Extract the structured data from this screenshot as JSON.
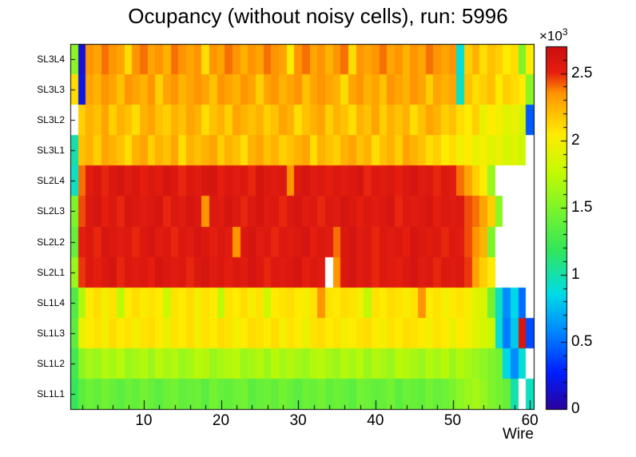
{
  "chart_data": {
    "type": "heatmap",
    "title": "Ocupancy (without noisy cells), run: 5996",
    "xlabel": "Wire",
    "x_bins": {
      "min": 1,
      "max": 60
    },
    "x_ticks": [
      10,
      20,
      30,
      40,
      50,
      60
    ],
    "rows_top_to_bottom": [
      "SL3L4",
      "SL3L3",
      "SL3L2",
      "SL3L1",
      "SL2L4",
      "SL2L3",
      "SL2L2",
      "SL2L1",
      "SL1L4",
      "SL1L3",
      "SL1L2",
      "SL1L1"
    ],
    "z_scale_factor": 1000,
    "z_unit_label": {
      "base": "×10",
      "exp": "3"
    },
    "zlim": [
      0,
      2.7
    ],
    "colorbar_ticks": [
      0,
      0.5,
      1,
      1.5,
      2,
      2.5
    ],
    "legend_position": "right",
    "grid": false,
    "palette": [
      [
        0.0,
        "#2d009b"
      ],
      [
        0.1,
        "#001eff"
      ],
      [
        0.22,
        "#008cff"
      ],
      [
        0.32,
        "#00dce6"
      ],
      [
        0.44,
        "#32e65a"
      ],
      [
        0.56,
        "#82f528"
      ],
      [
        0.66,
        "#c8fa00"
      ],
      [
        0.76,
        "#ffeb00"
      ],
      [
        0.87,
        "#ff9600"
      ],
      [
        0.93,
        "#e61e0f"
      ],
      [
        1.0,
        "#c80f0f"
      ]
    ],
    "values": [
      [
        1.55,
        0.15,
        2.35,
        2.3,
        2.4,
        2.35,
        2.3,
        2.1,
        2.35,
        2.4,
        2.3,
        2.35,
        2.25,
        2.4,
        2.35,
        2.3,
        2.35,
        2.1,
        2.35,
        2.3,
        2.4,
        2.35,
        2.25,
        2.35,
        2.3,
        2.4,
        2.35,
        2.3,
        2.05,
        2.35,
        2.4,
        2.3,
        2.35,
        2.25,
        2.35,
        2.4,
        2.1,
        2.35,
        2.3,
        2.35,
        2.4,
        2.3,
        2.35,
        2.25,
        2.35,
        2.3,
        2.4,
        2.35,
        2.3,
        2.35,
        0.9,
        2.15,
        2.25,
        2.1,
        2.2,
        2.15,
        2.05,
        2.1,
        1.5,
        2.05
      ],
      [
        2.1,
        0.2,
        2.3,
        2.25,
        2.35,
        2.3,
        2.2,
        2.35,
        2.3,
        2.25,
        2.35,
        2.15,
        2.3,
        2.35,
        2.25,
        2.3,
        2.35,
        2.3,
        2.2,
        2.35,
        2.3,
        2.25,
        2.35,
        2.3,
        2.15,
        2.3,
        2.35,
        2.25,
        2.3,
        2.35,
        2.2,
        2.3,
        2.35,
        2.3,
        2.25,
        2.1,
        2.3,
        2.35,
        2.25,
        2.3,
        2.2,
        2.35,
        2.3,
        2.25,
        2.35,
        2.3,
        2.15,
        2.3,
        2.25,
        2.3,
        0.95,
        2.2,
        2.1,
        2.15,
        2.2,
        2.05,
        2.15,
        2.1,
        2.05,
        1.55
      ],
      [
        null,
        2.15,
        2.25,
        2.2,
        2.3,
        2.15,
        2.25,
        2.2,
        2.1,
        2.25,
        2.3,
        2.2,
        2.15,
        2.25,
        2.2,
        2.3,
        2.25,
        2.1,
        2.2,
        2.25,
        2.15,
        2.3,
        2.25,
        2.2,
        2.25,
        2.15,
        2.2,
        2.3,
        2.25,
        2.1,
        2.2,
        2.25,
        2.3,
        2.15,
        2.25,
        2.2,
        2.1,
        2.25,
        2.2,
        2.3,
        2.15,
        2.25,
        2.2,
        2.25,
        2.1,
        2.2,
        2.3,
        2.25,
        2.15,
        2.2,
        2.1,
        2.05,
        2.15,
        1.95,
        2.05,
        2.0,
        1.9,
        1.95,
        1.85,
        0.45
      ],
      [
        1.0,
        2.2,
        2.25,
        2.15,
        2.3,
        2.25,
        2.2,
        2.1,
        2.25,
        2.3,
        2.15,
        2.25,
        2.2,
        2.3,
        2.1,
        2.25,
        2.2,
        2.25,
        2.3,
        2.15,
        2.25,
        2.2,
        2.1,
        2.25,
        2.3,
        2.2,
        2.25,
        2.15,
        2.2,
        2.25,
        2.3,
        2.1,
        2.25,
        2.2,
        2.15,
        2.25,
        2.3,
        2.2,
        2.25,
        2.1,
        2.2,
        2.25,
        2.15,
        2.3,
        2.25,
        2.2,
        2.1,
        2.15,
        2.05,
        2.1,
        2.0,
        2.05,
        1.95,
        2.0,
        1.9,
        1.95,
        1.85,
        1.9,
        1.8,
        null
      ],
      [
        0.95,
        2.4,
        2.55,
        2.6,
        2.5,
        2.58,
        2.62,
        2.55,
        2.6,
        2.52,
        2.58,
        2.55,
        2.62,
        2.58,
        2.5,
        2.58,
        2.55,
        2.6,
        2.62,
        2.52,
        2.58,
        2.55,
        2.58,
        2.5,
        2.62,
        2.58,
        2.55,
        2.58,
        2.35,
        2.58,
        2.62,
        2.55,
        2.58,
        2.52,
        2.58,
        2.55,
        2.58,
        2.62,
        2.5,
        2.58,
        2.55,
        2.58,
        2.52,
        2.58,
        2.62,
        2.55,
        2.58,
        2.5,
        2.58,
        2.55,
        2.4,
        2.3,
        2.15,
        2.05,
        1.6,
        null,
        null,
        null,
        null,
        null
      ],
      [
        1.5,
        2.45,
        2.58,
        2.62,
        2.52,
        2.58,
        2.5,
        2.62,
        2.58,
        2.55,
        2.58,
        2.62,
        2.5,
        2.58,
        2.55,
        2.62,
        2.58,
        2.35,
        2.58,
        2.55,
        2.62,
        2.58,
        2.5,
        2.58,
        2.62,
        2.55,
        2.58,
        2.5,
        2.58,
        2.62,
        2.55,
        2.58,
        2.5,
        2.58,
        2.55,
        2.62,
        2.58,
        2.52,
        2.58,
        2.55,
        2.58,
        2.62,
        2.5,
        2.58,
        2.55,
        2.58,
        2.62,
        2.52,
        2.58,
        2.55,
        2.58,
        2.45,
        2.4,
        2.3,
        2.15,
        1.55,
        null,
        null,
        null,
        null
      ],
      [
        1.4,
        2.52,
        2.58,
        2.5,
        2.62,
        2.58,
        2.55,
        2.58,
        2.5,
        2.58,
        2.62,
        2.55,
        2.58,
        2.5,
        2.58,
        2.55,
        2.62,
        2.58,
        2.52,
        2.58,
        2.55,
        2.35,
        2.58,
        2.62,
        2.55,
        2.58,
        2.5,
        2.58,
        2.55,
        2.58,
        2.62,
        2.52,
        2.58,
        2.55,
        2.4,
        2.58,
        2.62,
        2.55,
        2.58,
        2.5,
        2.58,
        2.55,
        2.58,
        2.52,
        2.62,
        2.58,
        2.55,
        2.58,
        2.5,
        2.58,
        2.55,
        2.45,
        2.35,
        2.25,
        1.5,
        null,
        null,
        null,
        null,
        null
      ],
      [
        1.6,
        2.48,
        2.58,
        2.52,
        2.58,
        2.62,
        2.5,
        2.58,
        2.55,
        2.58,
        2.52,
        2.62,
        2.58,
        2.55,
        2.58,
        2.5,
        2.58,
        2.62,
        2.55,
        2.58,
        2.52,
        2.58,
        2.55,
        2.62,
        2.58,
        2.5,
        2.58,
        2.55,
        2.58,
        2.62,
        2.52,
        2.58,
        2.55,
        null,
        2.35,
        2.58,
        2.62,
        2.55,
        2.58,
        2.5,
        2.58,
        2.55,
        2.52,
        2.58,
        2.62,
        2.55,
        2.58,
        2.5,
        2.58,
        2.55,
        2.58,
        2.48,
        2.3,
        2.15,
        2.05,
        null,
        null,
        null,
        null,
        null
      ],
      [
        1.3,
        1.7,
        2.05,
        2.1,
        2.0,
        2.08,
        1.75,
        2.05,
        2.1,
        2.02,
        2.08,
        2.05,
        1.8,
        2.08,
        2.05,
        2.1,
        2.0,
        2.08,
        2.05,
        1.75,
        2.08,
        2.05,
        2.1,
        2.02,
        2.08,
        1.8,
        2.05,
        2.08,
        2.1,
        2.05,
        2.0,
        2.08,
        2.35,
        2.08,
        2.05,
        2.1,
        2.08,
        2.0,
        1.75,
        2.08,
        2.05,
        2.1,
        2.08,
        2.02,
        2.08,
        2.35,
        2.05,
        2.08,
        2.0,
        2.05,
        2.08,
        2.02,
        1.9,
        1.85,
        1.45,
        0.95,
        0.6,
        0.85,
        0.5,
        null
      ],
      [
        1.35,
        1.95,
        2.05,
        2.08,
        2.0,
        2.1,
        2.05,
        2.08,
        2.0,
        2.08,
        2.1,
        2.05,
        1.95,
        2.08,
        2.05,
        2.1,
        2.0,
        2.08,
        2.05,
        2.1,
        2.08,
        2.0,
        2.05,
        2.1,
        2.08,
        2.05,
        2.1,
        2.0,
        2.08,
        2.05,
        1.95,
        2.08,
        2.1,
        2.05,
        2.08,
        2.0,
        2.05,
        2.08,
        2.1,
        2.05,
        2.0,
        2.08,
        2.05,
        2.1,
        2.08,
        2.05,
        2.0,
        2.08,
        2.05,
        1.95,
        2.05,
        2.0,
        1.9,
        1.85,
        1.8,
        0.9,
        0.55,
        0.8,
        2.6,
        0.4
      ],
      [
        1.25,
        1.55,
        1.65,
        1.6,
        1.7,
        1.65,
        1.72,
        1.6,
        1.65,
        1.7,
        1.6,
        1.72,
        1.65,
        1.7,
        1.6,
        1.65,
        1.72,
        1.7,
        1.6,
        1.65,
        1.7,
        1.72,
        1.6,
        1.65,
        1.7,
        1.6,
        1.72,
        1.65,
        1.7,
        1.65,
        1.6,
        1.7,
        1.72,
        1.65,
        1.6,
        1.7,
        1.65,
        1.72,
        1.6,
        1.7,
        1.65,
        1.6,
        1.72,
        1.7,
        1.65,
        1.6,
        1.7,
        1.65,
        1.72,
        1.6,
        1.7,
        1.65,
        1.6,
        1.55,
        1.5,
        1.45,
        0.85,
        0.6,
        0.9,
        null
      ],
      [
        1.2,
        1.35,
        1.42,
        1.38,
        1.45,
        1.4,
        1.35,
        1.42,
        1.38,
        1.45,
        1.4,
        1.35,
        1.42,
        1.45,
        1.38,
        1.4,
        1.42,
        1.35,
        1.45,
        1.4,
        1.38,
        1.42,
        1.45,
        1.35,
        1.4,
        1.42,
        1.38,
        1.45,
        1.4,
        1.35,
        1.42,
        1.4,
        1.45,
        1.38,
        1.42,
        1.4,
        1.35,
        1.45,
        1.42,
        1.38,
        1.4,
        1.45,
        1.35,
        1.42,
        1.4,
        1.38,
        1.45,
        1.4,
        1.42,
        1.48,
        1.55,
        1.6,
        1.65,
        1.58,
        1.5,
        1.45,
        1.4,
        1.0,
        null,
        0.95
      ]
    ]
  }
}
